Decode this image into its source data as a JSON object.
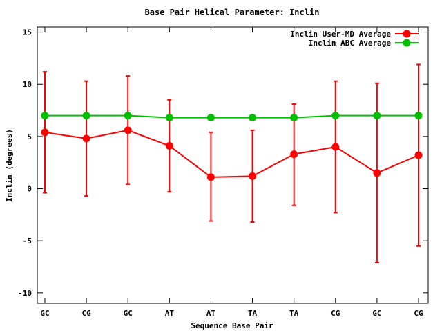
{
  "chart_data": {
    "type": "line",
    "title": "Base Pair Helical Parameter: Inclin",
    "xlabel": "Sequence Base Pair",
    "ylabel": "Inclin (degrees)",
    "categories": [
      "GC",
      "CG",
      "GC",
      "AT",
      "AT",
      "TA",
      "TA",
      "CG",
      "GC",
      "CG"
    ],
    "ylim": [
      -11,
      15.5
    ],
    "yticks": [
      -10,
      -5,
      0,
      5,
      10,
      15
    ],
    "ytick_labels": [
      "-10",
      "-5",
      "0",
      "5",
      "10",
      "15"
    ],
    "legend_position": "top-right",
    "series": [
      {
        "name": "Inclin User-MD Average",
        "color": "#ff0000",
        "values": [
          5.4,
          4.8,
          5.6,
          4.1,
          1.1,
          1.2,
          3.3,
          4.0,
          1.5,
          3.2
        ],
        "error_low": [
          -0.4,
          -0.7,
          0.4,
          -0.3,
          -3.1,
          -3.2,
          -1.6,
          -2.3,
          -7.1,
          -5.5
        ],
        "error_high": [
          11.2,
          10.3,
          10.8,
          8.5,
          5.4,
          5.6,
          8.1,
          10.3,
          10.1,
          11.9
        ]
      },
      {
        "name": "Inclin ABC Average",
        "color": "#00c000",
        "values": [
          7.0,
          7.0,
          7.0,
          6.8,
          6.8,
          6.8,
          6.8,
          7.0,
          7.0,
          7.0
        ]
      }
    ]
  }
}
